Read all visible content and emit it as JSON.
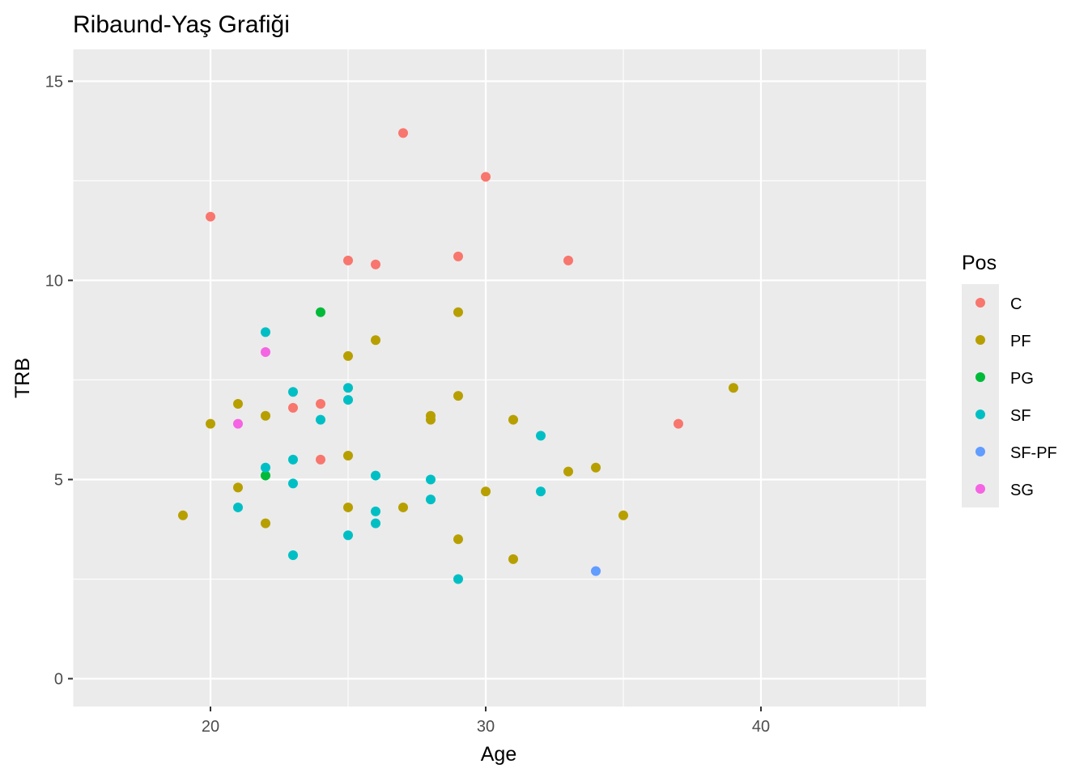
{
  "chart_data": {
    "type": "scatter",
    "title": "Ribaund-Yaş Grafiği",
    "xlabel": "Age",
    "ylabel": "TRB",
    "xlim": [
      15,
      46
    ],
    "ylim": [
      -0.7,
      15.8
    ],
    "x_ticks": [
      20,
      30,
      40
    ],
    "x_ticks_minor": [
      15,
      25,
      35,
      45
    ],
    "y_ticks": [
      0,
      5,
      10,
      15
    ],
    "y_ticks_minor": [
      2.5,
      7.5,
      12.5
    ],
    "grid": true,
    "panel_background": "#EBEBEB",
    "grid_color": "#FFFFFF",
    "legend": {
      "title": "Pos",
      "position": "right",
      "entries": [
        "C",
        "PF",
        "PG",
        "SF",
        "SF-PF",
        "SG"
      ]
    },
    "series": [
      {
        "name": "C",
        "color": "#F8766D",
        "points": [
          [
            20,
            11.6
          ],
          [
            24,
            6.9
          ],
          [
            24,
            5.5
          ],
          [
            23,
            6.8
          ],
          [
            25,
            10.5
          ],
          [
            26,
            10.4
          ],
          [
            27,
            13.7
          ],
          [
            29,
            10.6
          ],
          [
            30,
            12.6
          ],
          [
            33,
            10.5
          ],
          [
            37,
            6.4
          ]
        ]
      },
      {
        "name": "PF",
        "color": "#B79F00",
        "points": [
          [
            19,
            4.1
          ],
          [
            20,
            6.4
          ],
          [
            21,
            6.9
          ],
          [
            21,
            4.8
          ],
          [
            22,
            6.6
          ],
          [
            22,
            3.9
          ],
          [
            25,
            8.1
          ],
          [
            25,
            5.6
          ],
          [
            25,
            4.3
          ],
          [
            26,
            8.5
          ],
          [
            27,
            4.3
          ],
          [
            28,
            6.6
          ],
          [
            28,
            6.5
          ],
          [
            29,
            9.2
          ],
          [
            29,
            7.1
          ],
          [
            29,
            3.5
          ],
          [
            30,
            4.7
          ],
          [
            31,
            6.5
          ],
          [
            31,
            3.0
          ],
          [
            33,
            5.2
          ],
          [
            34,
            5.3
          ],
          [
            35,
            4.1
          ],
          [
            39,
            7.3
          ]
        ]
      },
      {
        "name": "PG",
        "color": "#00BA38",
        "points": [
          [
            22,
            5.1
          ],
          [
            24,
            9.2
          ]
        ]
      },
      {
        "name": "SF",
        "color": "#00BFC4",
        "points": [
          [
            21,
            4.3
          ],
          [
            22,
            8.7
          ],
          [
            22,
            5.3
          ],
          [
            23,
            7.2
          ],
          [
            23,
            5.5
          ],
          [
            23,
            4.9
          ],
          [
            23,
            3.1
          ],
          [
            24,
            6.5
          ],
          [
            25,
            7.3
          ],
          [
            25,
            7.0
          ],
          [
            25,
            3.6
          ],
          [
            26,
            5.1
          ],
          [
            26,
            4.2
          ],
          [
            26,
            3.9
          ],
          [
            28,
            5.0
          ],
          [
            28,
            4.5
          ],
          [
            29,
            2.5
          ],
          [
            32,
            6.1
          ],
          [
            32,
            4.7
          ]
        ]
      },
      {
        "name": "SF-PF",
        "color": "#619CFF",
        "points": [
          [
            34,
            2.7
          ]
        ]
      },
      {
        "name": "SG",
        "color": "#F564E3",
        "points": [
          [
            21,
            6.4
          ],
          [
            22,
            8.2
          ]
        ]
      }
    ]
  }
}
